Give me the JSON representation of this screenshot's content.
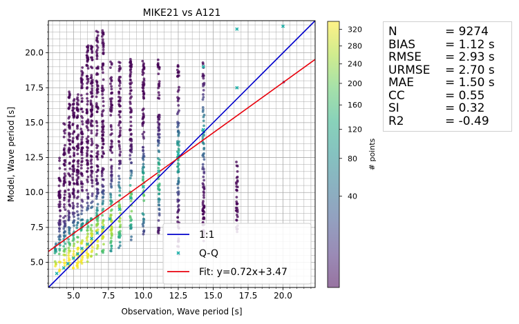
{
  "chart_data": {
    "type": "scatter",
    "title": "MIKE21 vs A121",
    "xlabel": "Observation, Wave period [s]",
    "ylabel": "Model, Wave period [s]",
    "xlim": [
      3.2,
      22.3
    ],
    "ylim": [
      3.2,
      22.3
    ],
    "xticks": [
      5.0,
      7.5,
      10.0,
      12.5,
      15.0,
      17.5,
      20.0
    ],
    "yticks": [
      5.0,
      7.5,
      10.0,
      12.5,
      15.0,
      17.5,
      20.0
    ],
    "xtick_labels": [
      "5.0",
      "7.5",
      "10.0",
      "12.5",
      "15.0",
      "17.5",
      "20.0"
    ],
    "ytick_labels": [
      "5.0",
      "7.5",
      "10.0",
      "12.5",
      "15.0",
      "17.5",
      "20.0"
    ],
    "grid": true,
    "legend_position": "lower-right",
    "series": [
      {
        "name": "1:1",
        "kind": "line",
        "color": "#0000cc",
        "slope": 1,
        "intercept": 0
      },
      {
        "name": "Q-Q",
        "kind": "markers",
        "color": "#20b2aa",
        "x": [
          3.8,
          4.3,
          4.6,
          5.0,
          5.3,
          5.6,
          6.0,
          6.3,
          6.7,
          7.1,
          7.6,
          8.3,
          9.1,
          10.0,
          11.1,
          12.5,
          14.3,
          14.3,
          16.7,
          16.7,
          20.0
        ],
        "y": [
          4.2,
          4.6,
          4.9,
          5.3,
          5.6,
          6.0,
          6.3,
          6.7,
          7.1,
          7.5,
          8.1,
          8.8,
          9.6,
          10.4,
          11.5,
          12.8,
          14.5,
          19.0,
          17.5,
          21.7,
          21.9
        ]
      },
      {
        "name": "Fit: y=0.72x+3.47",
        "kind": "line",
        "color": "#e8000b",
        "slope": 0.72,
        "intercept": 3.47
      }
    ],
    "columns": [
      {
        "x": 3.7,
        "y_min": 4.5,
        "y_max": 6.5
      },
      {
        "x": 4.0,
        "y_min": 4.3,
        "y_max": 12.5
      },
      {
        "x": 4.35,
        "y_min": 4.5,
        "y_max": 15.2
      },
      {
        "x": 4.7,
        "y_min": 4.5,
        "y_max": 17.3
      },
      {
        "x": 5.0,
        "y_min": 4.5,
        "y_max": 16.8
      },
      {
        "x": 5.3,
        "y_min": 4.6,
        "y_max": 17.4
      },
      {
        "x": 5.6,
        "y_min": 4.8,
        "y_max": 19.0
      },
      {
        "x": 6.0,
        "y_min": 5.0,
        "y_max": 21.0
      },
      {
        "x": 6.3,
        "y_min": 5.2,
        "y_max": 20.5
      },
      {
        "x": 6.7,
        "y_min": 5.5,
        "y_max": 21.8
      },
      {
        "x": 7.1,
        "y_min": 5.5,
        "y_max": 21.8
      },
      {
        "x": 7.7,
        "y_min": 5.8,
        "y_max": 19.5
      },
      {
        "x": 8.3,
        "y_min": 6.0,
        "y_max": 19.5
      },
      {
        "x": 9.1,
        "y_min": 6.5,
        "y_max": 19.6
      },
      {
        "x": 10.0,
        "y_min": 6.8,
        "y_max": 19.5
      },
      {
        "x": 11.1,
        "y_min": 7.0,
        "y_max": 19.5
      },
      {
        "x": 12.5,
        "y_min": 5.2,
        "y_max": 19.4
      },
      {
        "x": 14.3,
        "y_min": 6.5,
        "y_max": 19.6
      },
      {
        "x": 16.7,
        "y_min": 7.0,
        "y_max": 12.2
      },
      {
        "x": 20.0,
        "y_min": 17.9,
        "y_max": 17.9
      }
    ],
    "colorbar": {
      "label": "# points",
      "ticks": [
        40,
        80,
        120,
        160,
        200,
        240,
        280,
        320
      ],
      "tick_labels": [
        "40",
        "80",
        "120",
        "160",
        "200",
        "240",
        "280",
        "320"
      ],
      "scale": "sqrt",
      "range": [
        0,
        340
      ],
      "colormap": "viridis"
    },
    "stats": [
      {
        "name": "N",
        "value": "= 9274"
      },
      {
        "name": "BIAS",
        "value": "= 1.12 s"
      },
      {
        "name": "RMSE",
        "value": "= 2.93 s"
      },
      {
        "name": "URMSE",
        "value": "= 2.70 s"
      },
      {
        "name": "MAE",
        "value": "= 1.50 s"
      },
      {
        "name": "CC",
        "value": "= 0.55"
      },
      {
        "name": "SI",
        "value": "= 0.32"
      },
      {
        "name": "R2",
        "value": "= -0.49"
      }
    ]
  }
}
